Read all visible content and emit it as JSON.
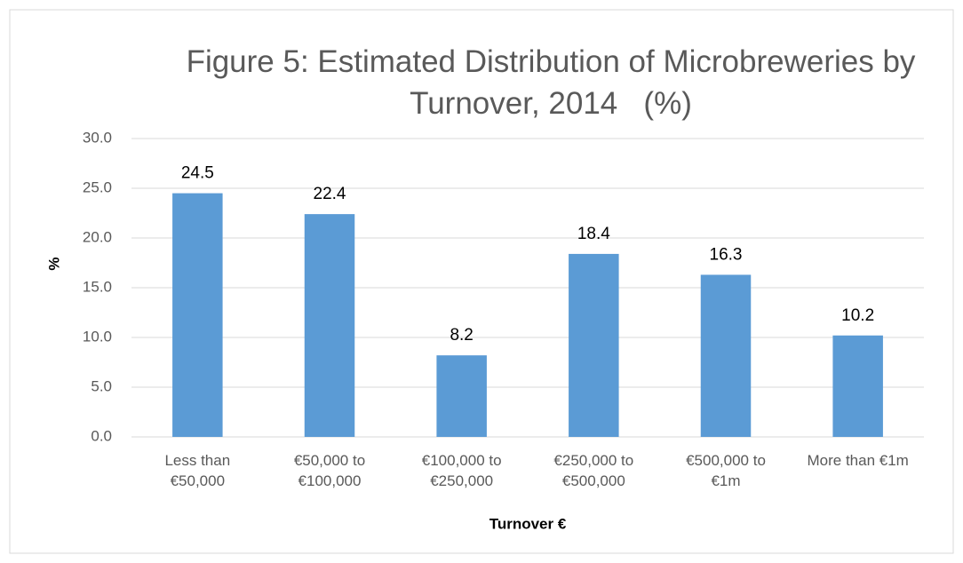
{
  "chart_data": {
    "type": "bar",
    "title": "Figure 5: Estimated Distribution of Microbreweries by Turnover, 2014   (%)",
    "x_label": "Turnover €",
    "y_label": "%",
    "categories": [
      "Less than €50,000",
      "€50,000 to €100,000",
      "€100,000 to €250,000",
      "€250,000 to €500,000",
      "€500,000 to €1m",
      "More than €1m"
    ],
    "values": [
      24.5,
      22.4,
      8.2,
      18.4,
      16.3,
      10.2
    ],
    "color": "#5b9bd5",
    "ylim": [
      0,
      30
    ],
    "yticks": [
      {
        "value": 0,
        "label": "0.0"
      },
      {
        "value": 5,
        "label": "5.0"
      },
      {
        "value": 10,
        "label": "10.0"
      },
      {
        "value": 15,
        "label": "15.0"
      },
      {
        "value": 20,
        "label": "20.0"
      },
      {
        "value": 25,
        "label": "25.0"
      },
      {
        "value": 30,
        "label": "30.0"
      }
    ],
    "grid": true
  }
}
